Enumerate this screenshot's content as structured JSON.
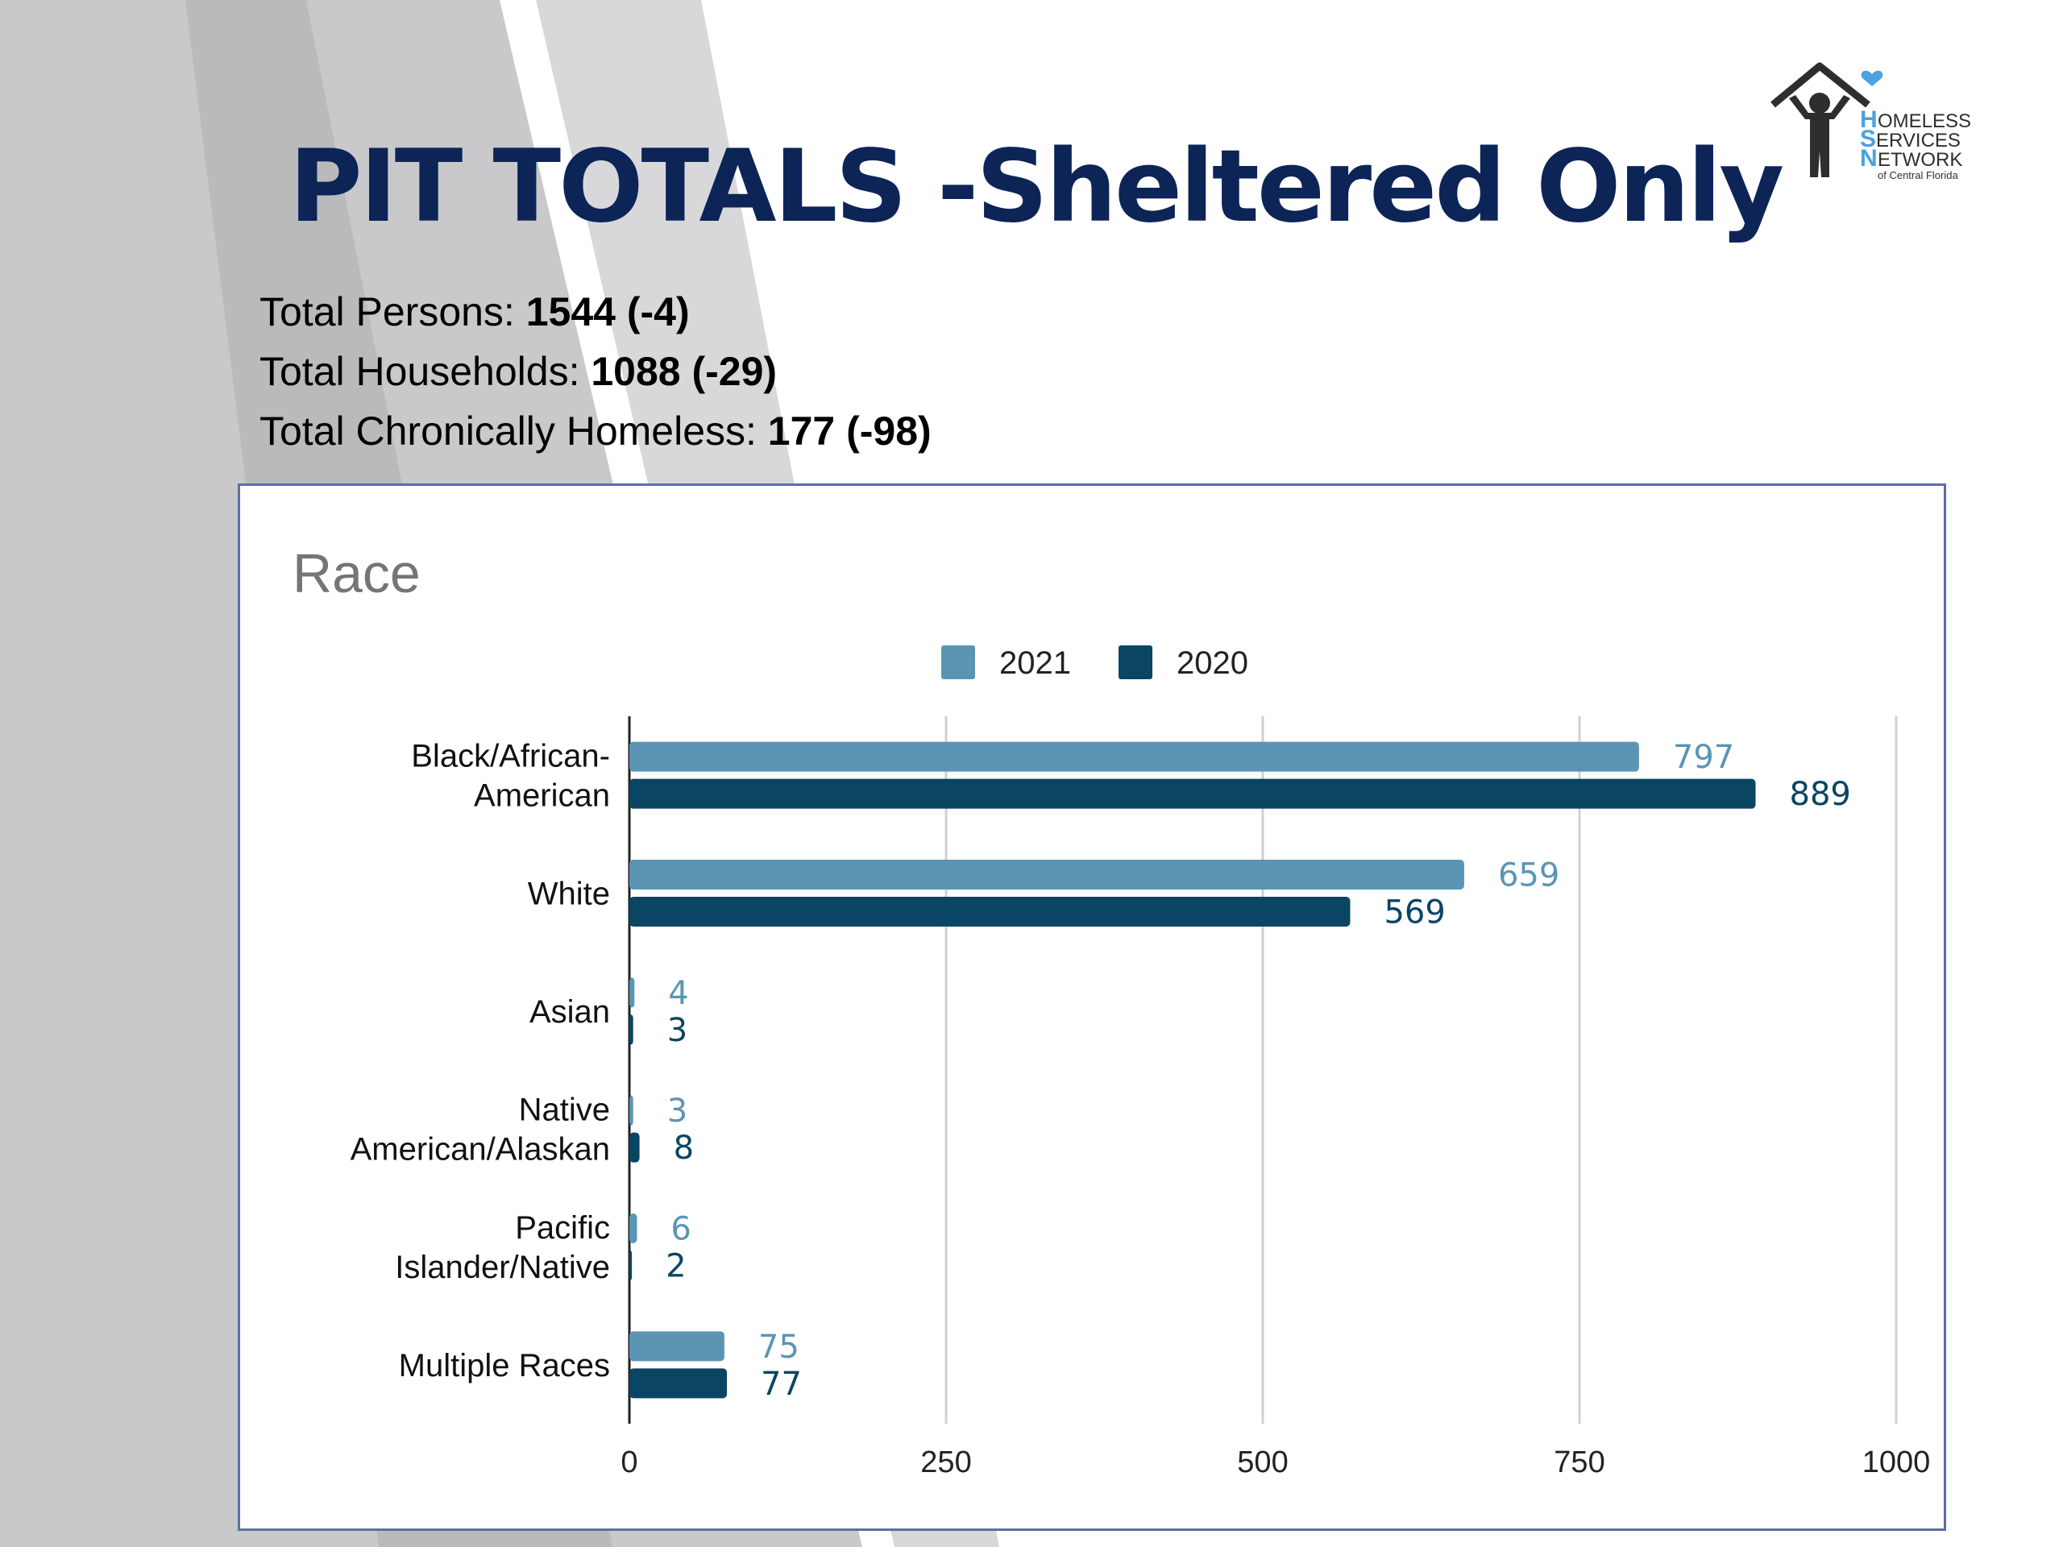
{
  "slide": {
    "title": "PIT TOTALS -Sheltered Only",
    "stats": [
      {
        "label": "Total Persons: ",
        "value": "1544 (-4)"
      },
      {
        "label": "Total Households: ",
        "value": "1088 (-29)"
      },
      {
        "label": "Total Chronically Homeless: ",
        "value": "177 (-98)"
      }
    ],
    "logo": {
      "lines": [
        "OMELESS",
        "ERVICES",
        "ETWORK"
      ],
      "initials": [
        "H",
        "S",
        "N"
      ],
      "tagline": "of Central Florida",
      "colors": {
        "dark": "#2e2e2e",
        "accent": "#4aa3df"
      }
    }
  },
  "chart_data": {
    "type": "bar",
    "orientation": "horizontal",
    "title": "Race",
    "categories": [
      "Black/African-American",
      "White",
      "Asian",
      "Native American/Alaskan",
      "Pacific Islander/Native",
      "Multiple Races"
    ],
    "category_label_lines": [
      [
        "Black/African-",
        "American"
      ],
      [
        "White"
      ],
      [
        "Asian"
      ],
      [
        "Native",
        "American/Alaskan"
      ],
      [
        "Pacific",
        "Islander/Native"
      ],
      [
        "Multiple Races"
      ]
    ],
    "series": [
      {
        "name": "2021",
        "values": [
          797,
          659,
          4,
          3,
          6,
          75
        ],
        "color": "#5b95b3"
      },
      {
        "name": "2020",
        "values": [
          889,
          569,
          3,
          8,
          2,
          77
        ],
        "color": "#0a4563"
      }
    ],
    "xlim": [
      0,
      1000
    ],
    "xticks": [
      0,
      250,
      500,
      750,
      1000
    ],
    "grid": true,
    "legend": "top"
  }
}
